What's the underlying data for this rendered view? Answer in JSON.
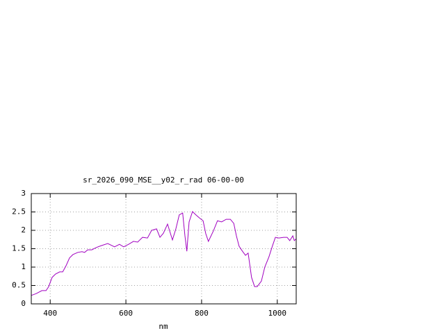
{
  "chart_data": {
    "type": "line",
    "title": "sr_2026_090_MSE__y02_r_rad 06-00-00",
    "x_label": "nm",
    "x": [
      350,
      363,
      378,
      389,
      396,
      405,
      414,
      425,
      433,
      442,
      451,
      460,
      473,
      484,
      491,
      499,
      510,
      521,
      534,
      552,
      570,
      583,
      594,
      607,
      620,
      631,
      644,
      657,
      668,
      681,
      690,
      699,
      710,
      723,
      732,
      741,
      750,
      756,
      761,
      767,
      776,
      785,
      794,
      804,
      811,
      818,
      831,
      842,
      853,
      865,
      876,
      885,
      892,
      899,
      908,
      916,
      923,
      932,
      940,
      947,
      958,
      967,
      978,
      987,
      995,
      1004,
      1017,
      1026,
      1033,
      1041,
      1045,
      1050
    ],
    "series": [
      {
        "color": "#a000c0",
        "values": [
          0.23,
          0.28,
          0.36,
          0.36,
          0.47,
          0.72,
          0.81,
          0.87,
          0.87,
          1.04,
          1.25,
          1.34,
          1.4,
          1.42,
          1.4,
          1.47,
          1.47,
          1.53,
          1.58,
          1.64,
          1.55,
          1.62,
          1.55,
          1.62,
          1.7,
          1.68,
          1.81,
          1.79,
          2.0,
          2.04,
          1.81,
          1.92,
          2.17,
          1.74,
          2.04,
          2.42,
          2.47,
          1.85,
          1.43,
          2.23,
          2.51,
          2.42,
          2.34,
          2.26,
          1.91,
          1.7,
          1.98,
          2.26,
          2.23,
          2.3,
          2.3,
          2.19,
          1.85,
          1.57,
          1.43,
          1.32,
          1.38,
          0.72,
          0.47,
          0.47,
          0.62,
          1.0,
          1.28,
          1.57,
          1.81,
          1.79,
          1.81,
          1.81,
          1.72,
          1.85,
          1.72,
          1.77
        ]
      }
    ],
    "xlim": [
      350,
      1050
    ],
    "xticks": [
      400,
      600,
      800,
      1000
    ],
    "ylim": [
      0,
      3
    ],
    "yticks": [
      0,
      0.5,
      1,
      1.5,
      2,
      2.5,
      3
    ],
    "grid": true
  }
}
